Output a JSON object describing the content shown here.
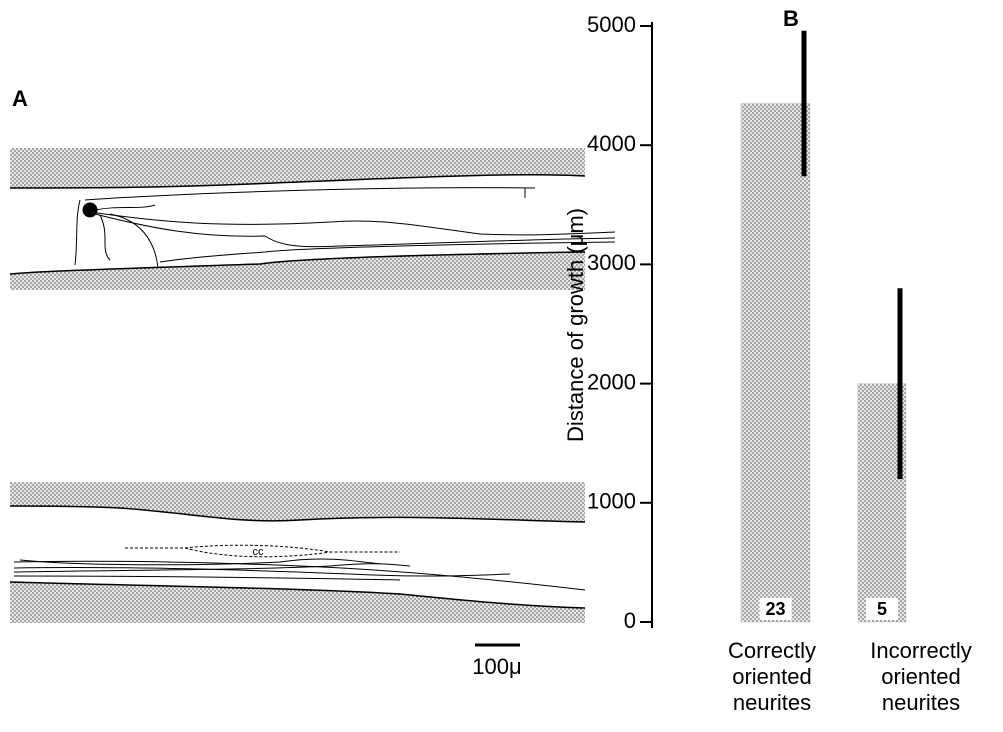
{
  "panel_a": {
    "label": "A",
    "annotation": "cc",
    "scale_bar": "100μ"
  },
  "chart_data": {
    "type": "bar",
    "panel_label": "B",
    "y_label": "Distance of growth (μm)",
    "categories": [
      "Correctly oriented neurites",
      "Incorrectly oriented neurites"
    ],
    "values": [
      4350,
      2000
    ],
    "errors": [
      610,
      800
    ],
    "n_labels": [
      "23",
      "5"
    ],
    "color": "#bdbdbd",
    "error_color": "#000000",
    "ylim": [
      0,
      5000
    ],
    "yticks": [
      0,
      1000,
      2000,
      3000,
      4000,
      5000
    ]
  }
}
